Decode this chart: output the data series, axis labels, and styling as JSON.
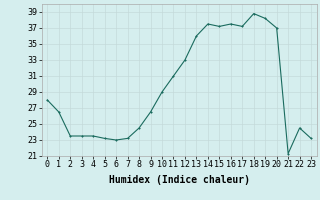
{
  "x": [
    0,
    1,
    2,
    3,
    4,
    5,
    6,
    7,
    8,
    9,
    10,
    11,
    12,
    13,
    14,
    15,
    16,
    17,
    18,
    19,
    20,
    21,
    22,
    23
  ],
  "y": [
    28,
    26.5,
    23.5,
    23.5,
    23.5,
    23.2,
    23.0,
    23.2,
    24.5,
    26.5,
    29.0,
    31.0,
    33.0,
    36.0,
    37.5,
    37.2,
    37.5,
    37.2,
    38.8,
    38.2,
    37.0,
    21.3,
    24.5,
    23.2
  ],
  "xlabel": "Humidex (Indice chaleur)",
  "xlim": [
    -0.5,
    23.5
  ],
  "ylim": [
    21,
    40
  ],
  "yticks": [
    21,
    23,
    25,
    27,
    29,
    31,
    33,
    35,
    37,
    39
  ],
  "xticks": [
    0,
    1,
    2,
    3,
    4,
    5,
    6,
    7,
    8,
    9,
    10,
    11,
    12,
    13,
    14,
    15,
    16,
    17,
    18,
    19,
    20,
    21,
    22,
    23
  ],
  "line_color": "#1a6b5e",
  "marker_size": 2.0,
  "bg_color": "#d5eeee",
  "grid_color": "#c4dada",
  "label_fontsize": 7.0,
  "tick_fontsize": 6.0
}
